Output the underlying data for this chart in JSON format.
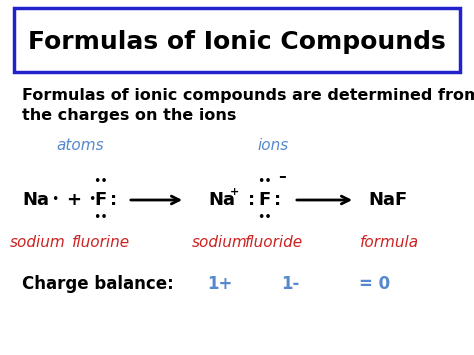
{
  "title": "Formulas of Ionic Compounds",
  "title_fontsize": 18,
  "title_box_color": "#2222cc",
  "bg_color": "#ffffff",
  "subtitle_line1": "Formulas of ionic compounds are determined from",
  "subtitle_line2": "the charges on the ions",
  "subtitle_fontsize": 11.5,
  "atoms_label": "atoms",
  "ions_label": "ions",
  "label_color": "#5588cc",
  "label_fontsize": 11,
  "row_labels_color": "#cc2222",
  "row_label_fontsize": 11,
  "charge_balance_label": "Charge balance:",
  "charge_balance_color": "#5588cc",
  "charge_balance_fontsize": 12
}
